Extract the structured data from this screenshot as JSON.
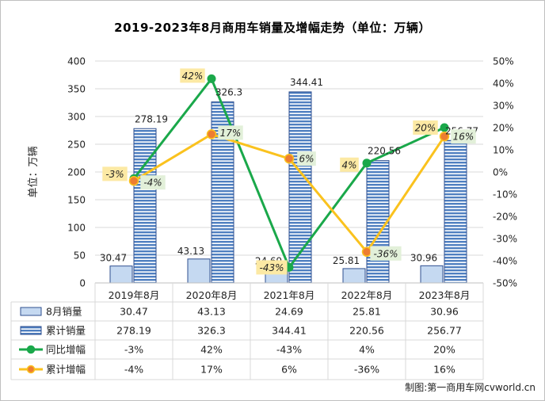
{
  "chart_data": {
    "type": "bar",
    "title": "2019-2023年8月商用车销量及增幅走势（单位：万辆）",
    "ylabel": "单位：万辆",
    "ylim": [
      0,
      400
    ],
    "y_ticks": [
      "0",
      "50",
      "100",
      "150",
      "200",
      "250",
      "300",
      "350",
      "400"
    ],
    "y2lim": [
      -50,
      50
    ],
    "y2_ticks": [
      "-50%",
      "-40%",
      "-30%",
      "-20%",
      "-10%",
      "0%",
      "10%",
      "20%",
      "30%",
      "40%",
      "50%"
    ],
    "categories": [
      "2019年8月",
      "2020年8月",
      "2021年8月",
      "2022年8月",
      "2023年8月"
    ],
    "series": [
      {
        "name": "8月销量",
        "kind": "bar",
        "values": [
          30.47,
          43.13,
          24.69,
          25.81,
          30.96
        ],
        "labels": [
          "30.47",
          "43.13",
          "24.69",
          "25.81",
          "30.96"
        ],
        "color": "#c5d9f1"
      },
      {
        "name": "累计销量",
        "kind": "bar",
        "values": [
          278.19,
          326.3,
          344.41,
          220.56,
          256.77
        ],
        "labels": [
          "278.19",
          "326.3",
          "344.41",
          "220.56",
          "256.77"
        ],
        "color": "#5b87c4"
      },
      {
        "name": "同比增幅",
        "kind": "line",
        "axis": "right",
        "values": [
          -3,
          42,
          -43,
          4,
          20
        ],
        "labels": [
          "-3%",
          "42%",
          "-43%",
          "4%",
          "20%"
        ],
        "color": "#1aa84a"
      },
      {
        "name": "累计增幅",
        "kind": "line",
        "axis": "right",
        "values": [
          -4,
          17,
          6,
          -36,
          16
        ],
        "labels": [
          "-4%",
          "17%",
          "6%",
          "-36%",
          "16%"
        ],
        "color": "#fac21e"
      }
    ],
    "grid": true,
    "legend": "bottom-table"
  },
  "credit": "制图:第一商用车网cvworld.cn",
  "colors": {
    "bar_border": "#2f4f8f",
    "grid": "#d9d9d9",
    "yellow_label_bg": "#fce9a4",
    "green_label_bg": "#e2f0d9",
    "marker_orange": "#ed7d31"
  }
}
